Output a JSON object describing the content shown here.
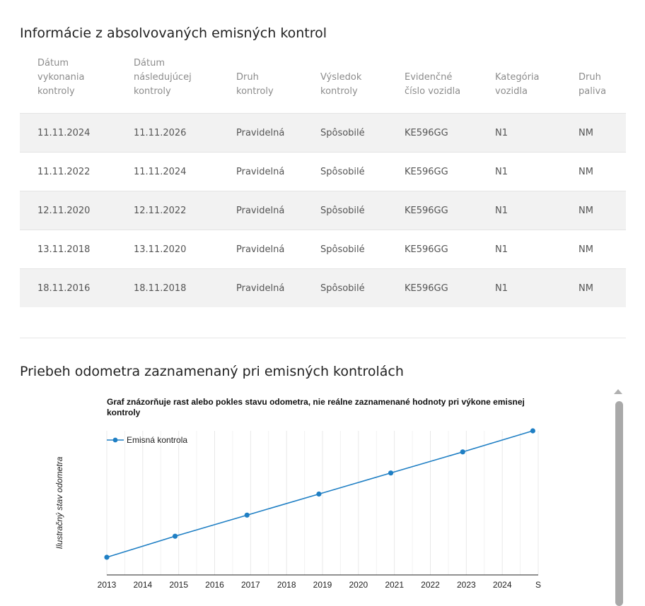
{
  "emissions_section": {
    "title": "Informácie z absolvovaných emisných kontrol",
    "columns": [
      [
        "Dátum",
        "vykonania",
        "kontroly"
      ],
      [
        "Dátum",
        "následujúcej",
        "kontroly"
      ],
      [
        "Druh",
        "kontroly"
      ],
      [
        "Výsledok",
        "kontroly"
      ],
      [
        "Evidenčné",
        "číslo vozidla"
      ],
      [
        "Kategória",
        "vozidla"
      ],
      [
        "Druh",
        "paliva"
      ]
    ],
    "rows": [
      [
        "11.11.2024",
        "11.11.2026",
        "Pravidelná",
        "Spôsobilé",
        "KE596GG",
        "N1",
        "NM"
      ],
      [
        "11.11.2022",
        "11.11.2024",
        "Pravidelná",
        "Spôsobilé",
        "KE596GG",
        "N1",
        "NM"
      ],
      [
        "12.11.2020",
        "12.11.2022",
        "Pravidelná",
        "Spôsobilé",
        "KE596GG",
        "N1",
        "NM"
      ],
      [
        "13.11.2018",
        "13.11.2020",
        "Pravidelná",
        "Spôsobilé",
        "KE596GG",
        "N1",
        "NM"
      ],
      [
        "18.11.2016",
        "18.11.2018",
        "Pravidelná",
        "Spôsobilé",
        "KE596GG",
        "N1",
        "NM"
      ]
    ]
  },
  "odometer_section": {
    "title": "Priebeh odometra zaznamenaný pri emisných kontrolách"
  },
  "chart_data": {
    "type": "line",
    "title": "Graf znázorňuje rast alebo pokles stavu odometra, nie reálne zaznamenané hodnoty pri výkone emisnej kontroly",
    "xlabel": "",
    "ylabel": "Ilustračný stav odometra",
    "x_ticks": [
      "2013",
      "2014",
      "2015",
      "2016",
      "2017",
      "2018",
      "2019",
      "2020",
      "2021",
      "2022",
      "2023",
      "2024",
      "S"
    ],
    "series": [
      {
        "name": "Emisná kontrola",
        "color": "#1f7fc4",
        "x": [
          2013,
          2014.9,
          2016.9,
          2018.9,
          2020.9,
          2022.9,
          2024.85
        ],
        "y": [
          0,
          1,
          2,
          3,
          4,
          5,
          6
        ]
      }
    ],
    "xlim": [
      2013,
      2025
    ],
    "ylim": [
      0,
      6
    ],
    "grid": "vertical",
    "legend": "top-left"
  },
  "colors": {
    "series": "#1f7fc4",
    "row_shade": "#f2f2f2",
    "header_text": "#8c8c8c",
    "scrollbar": "#a9a9a9"
  }
}
